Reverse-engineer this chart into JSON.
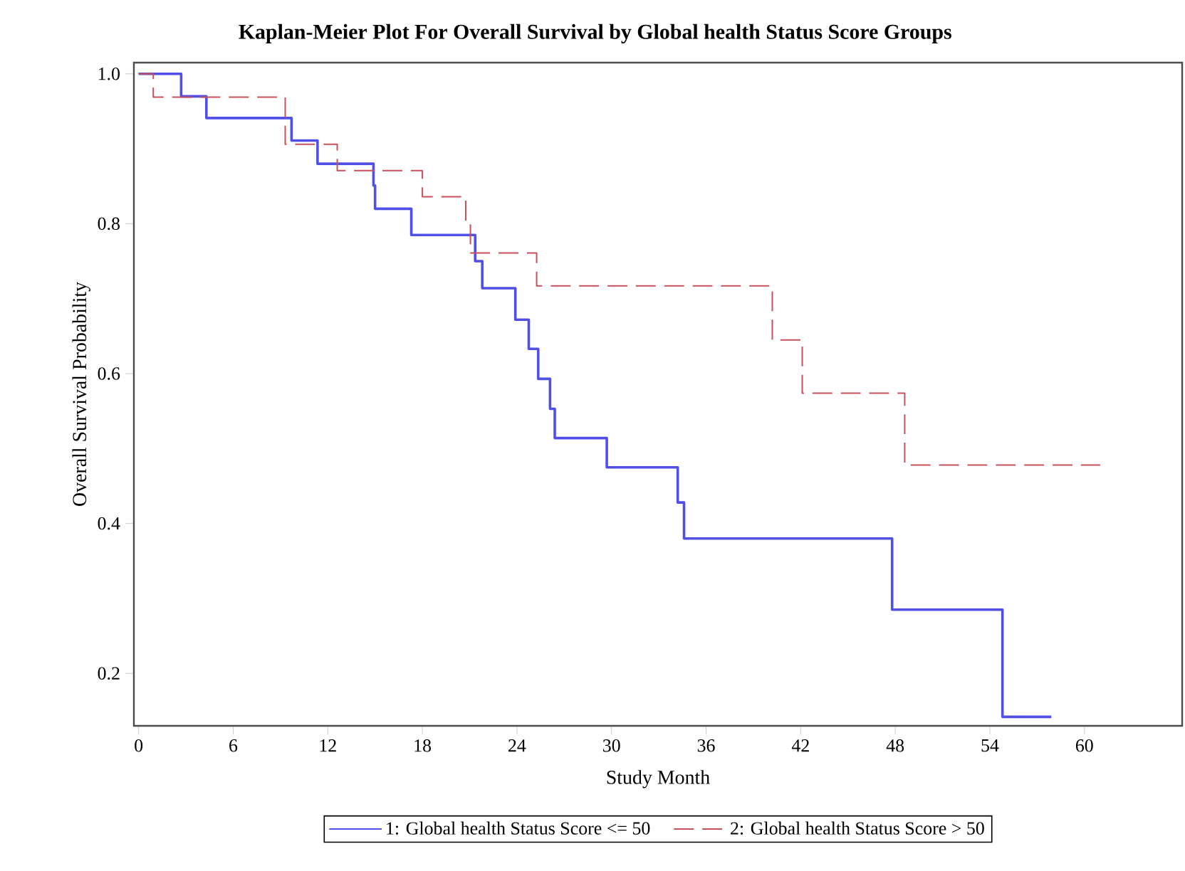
{
  "chart_data": {
    "type": "step",
    "title": "Kaplan-Meier Plot For Overall Survival by Global health Status Score Groups",
    "xlabel": "Study Month",
    "ylabel": "Overall Survival Probability",
    "xlim": [
      -0.3,
      66.2
    ],
    "ylim": [
      0.13,
      1.015
    ],
    "xticks": [
      0,
      6,
      12,
      18,
      24,
      30,
      36,
      42,
      48,
      54,
      60
    ],
    "yticks": [
      0.2,
      0.4,
      0.6,
      0.8,
      {
        "value": 1.0,
        "label": "1.0"
      }
    ],
    "legend": "bottom",
    "series": [
      {
        "name": "1: Global health Status Score <= 50",
        "color": "#5050e6",
        "line_style": "solid",
        "x": [
          0,
          2.7,
          4.3,
          9.7,
          11.35,
          14.9,
          15.0,
          17.3,
          21.35,
          21.8,
          23.9,
          24.75,
          25.35,
          26.1,
          26.4,
          29.7,
          34.2,
          34.6,
          47.8,
          54.8,
          57.9
        ],
        "values": [
          1.0,
          0.97,
          0.941,
          0.911,
          0.88,
          0.851,
          0.82,
          0.785,
          0.75,
          0.714,
          0.672,
          0.633,
          0.593,
          0.553,
          0.514,
          0.475,
          0.428,
          0.38,
          0.285,
          0.142,
          0.142
        ]
      },
      {
        "name": "2: Global health Status Score > 50",
        "color": "#c8505a",
        "line_style": "dashed",
        "x": [
          0,
          0.93,
          9.3,
          12.6,
          18.0,
          20.75,
          21.05,
          25.25,
          40.2,
          42.1,
          48.6,
          61.0
        ],
        "values": [
          1.0,
          0.969,
          0.906,
          0.871,
          0.836,
          0.801,
          0.761,
          0.717,
          0.645,
          0.574,
          0.478,
          0.478
        ]
      }
    ]
  }
}
